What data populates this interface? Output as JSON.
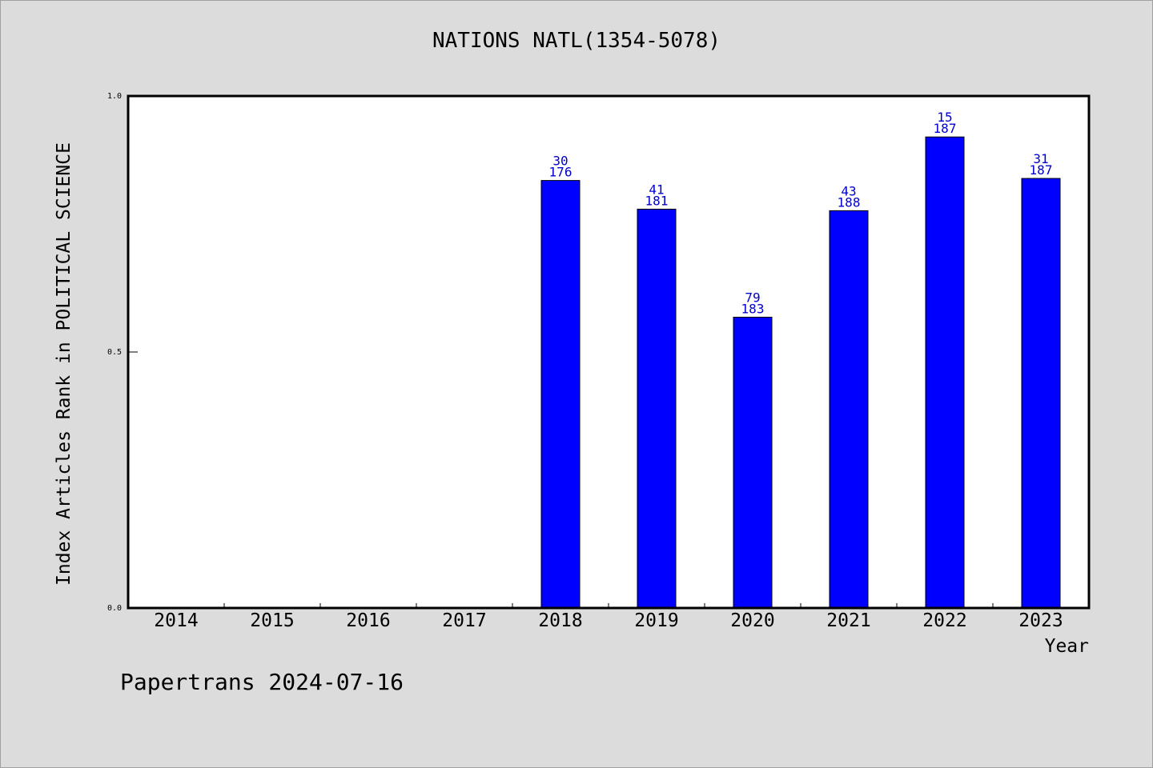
{
  "colors": {
    "background": "#dcdcdc",
    "plot_background": "#ffffff",
    "bar": "#0000ff",
    "data_label": "#0000cc"
  },
  "footer": "Papertrans 2024-07-16",
  "chart_data": {
    "type": "bar",
    "title": "NATIONS NATL(1354-5078)",
    "xlabel": "Year",
    "ylabel": "Index Articles Rank in POLITICAL SCIENCE",
    "ylim": [
      0,
      1
    ],
    "yticks": [
      "0.0",
      "0.5",
      "1.0"
    ],
    "ytick_values": [
      0,
      0.5,
      1
    ],
    "grid": false,
    "categories": [
      "2014",
      "2015",
      "2016",
      "2017",
      "2018",
      "2019",
      "2020",
      "2021",
      "2022",
      "2023"
    ],
    "values": [
      null,
      null,
      null,
      null,
      0.835,
      0.779,
      0.568,
      0.776,
      0.92,
      0.839
    ],
    "rank_labels": [
      null,
      null,
      null,
      null,
      "30",
      "41",
      "79",
      "43",
      "15",
      "31"
    ],
    "total_labels": [
      null,
      null,
      null,
      null,
      "176",
      "181",
      "183",
      "188",
      "187",
      "187"
    ]
  }
}
